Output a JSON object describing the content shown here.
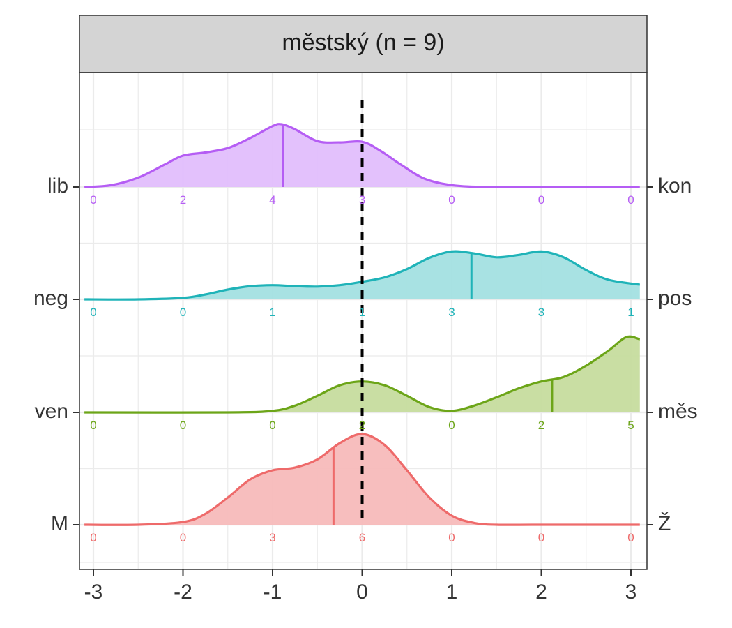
{
  "chart_data": {
    "type": "ridgeline",
    "facet_title": "městský (n = 9)",
    "xlim": [
      -3,
      3
    ],
    "x_ticks": [
      "-3",
      "-2",
      "-1",
      "0",
      "1",
      "2",
      "3"
    ],
    "x_tick_values": [
      -3,
      -2,
      -1,
      0,
      1,
      2,
      3
    ],
    "reference_line_x": 0,
    "grid": true,
    "count_positions": [
      -3,
      -2,
      -1,
      0,
      1,
      2,
      3
    ],
    "rows": [
      {
        "left_label": "lib",
        "right_label": "kon",
        "color": "#B55DF4",
        "fill": "#E1BEFC",
        "mean": -0.88,
        "counts": [
          "0",
          "2",
          "4",
          "3",
          "0",
          "0",
          "0"
        ],
        "density_x": [
          -3.1,
          -2.8,
          -2.5,
          -2.2,
          -2.0,
          -1.75,
          -1.5,
          -1.25,
          -1.0,
          -0.9,
          -0.75,
          -0.5,
          -0.25,
          0.0,
          0.2,
          0.45,
          0.7,
          1.0,
          1.4,
          2.0,
          3.1
        ],
        "density_y": [
          0.0,
          0.03,
          0.15,
          0.36,
          0.5,
          0.55,
          0.62,
          0.78,
          0.97,
          1.0,
          0.92,
          0.73,
          0.71,
          0.72,
          0.58,
          0.34,
          0.13,
          0.03,
          0.0,
          0.0,
          0.0
        ]
      },
      {
        "left_label": "neg",
        "right_label": "pos",
        "color": "#1FB3B8",
        "fill": "#A3E0E2",
        "mean": 1.22,
        "counts": [
          "0",
          "0",
          "1",
          "1",
          "3",
          "3",
          "1"
        ],
        "density_x": [
          -3.1,
          -2.5,
          -2.0,
          -1.75,
          -1.5,
          -1.25,
          -1.0,
          -0.75,
          -0.5,
          -0.25,
          0.0,
          0.25,
          0.5,
          0.75,
          1.0,
          1.25,
          1.5,
          1.75,
          2.0,
          2.25,
          2.5,
          2.75,
          3.1
        ],
        "density_y": [
          0.0,
          0.0,
          0.03,
          0.1,
          0.2,
          0.27,
          0.29,
          0.27,
          0.26,
          0.29,
          0.36,
          0.45,
          0.62,
          0.85,
          0.98,
          0.94,
          0.86,
          0.91,
          0.98,
          0.86,
          0.6,
          0.4,
          0.3
        ]
      },
      {
        "left_label": "ven",
        "right_label": "měs",
        "color": "#6CA518",
        "fill": "#C6DC9E",
        "mean": 2.12,
        "counts": [
          "0",
          "0",
          "0",
          "2",
          "0",
          "2",
          "5"
        ],
        "density_x": [
          -3.1,
          -1.5,
          -1.0,
          -0.75,
          -0.5,
          -0.25,
          0.0,
          0.25,
          0.5,
          0.75,
          1.0,
          1.25,
          1.5,
          1.75,
          2.0,
          2.25,
          2.5,
          2.75,
          2.95,
          3.1
        ],
        "density_y": [
          0.0,
          0.0,
          0.02,
          0.09,
          0.22,
          0.36,
          0.41,
          0.36,
          0.22,
          0.07,
          0.02,
          0.09,
          0.2,
          0.32,
          0.41,
          0.47,
          0.62,
          0.82,
          1.0,
          0.97
        ]
      },
      {
        "left_label": "M",
        "right_label": "Ž",
        "color": "#EE6A6A",
        "fill": "#F7BBBB",
        "mean": -0.32,
        "counts": [
          "0",
          "0",
          "3",
          "6",
          "0",
          "0",
          "0"
        ],
        "density_x": [
          -3.1,
          -2.5,
          -2.0,
          -1.75,
          -1.5,
          -1.25,
          -1.0,
          -0.75,
          -0.5,
          -0.25,
          0.0,
          0.25,
          0.5,
          0.75,
          1.0,
          1.25,
          1.5,
          2.0,
          3.1
        ],
        "density_y": [
          0.0,
          0.0,
          0.03,
          0.12,
          0.3,
          0.5,
          0.6,
          0.63,
          0.72,
          0.9,
          1.0,
          0.88,
          0.6,
          0.3,
          0.1,
          0.02,
          0.0,
          0.0,
          0.0
        ]
      }
    ]
  }
}
